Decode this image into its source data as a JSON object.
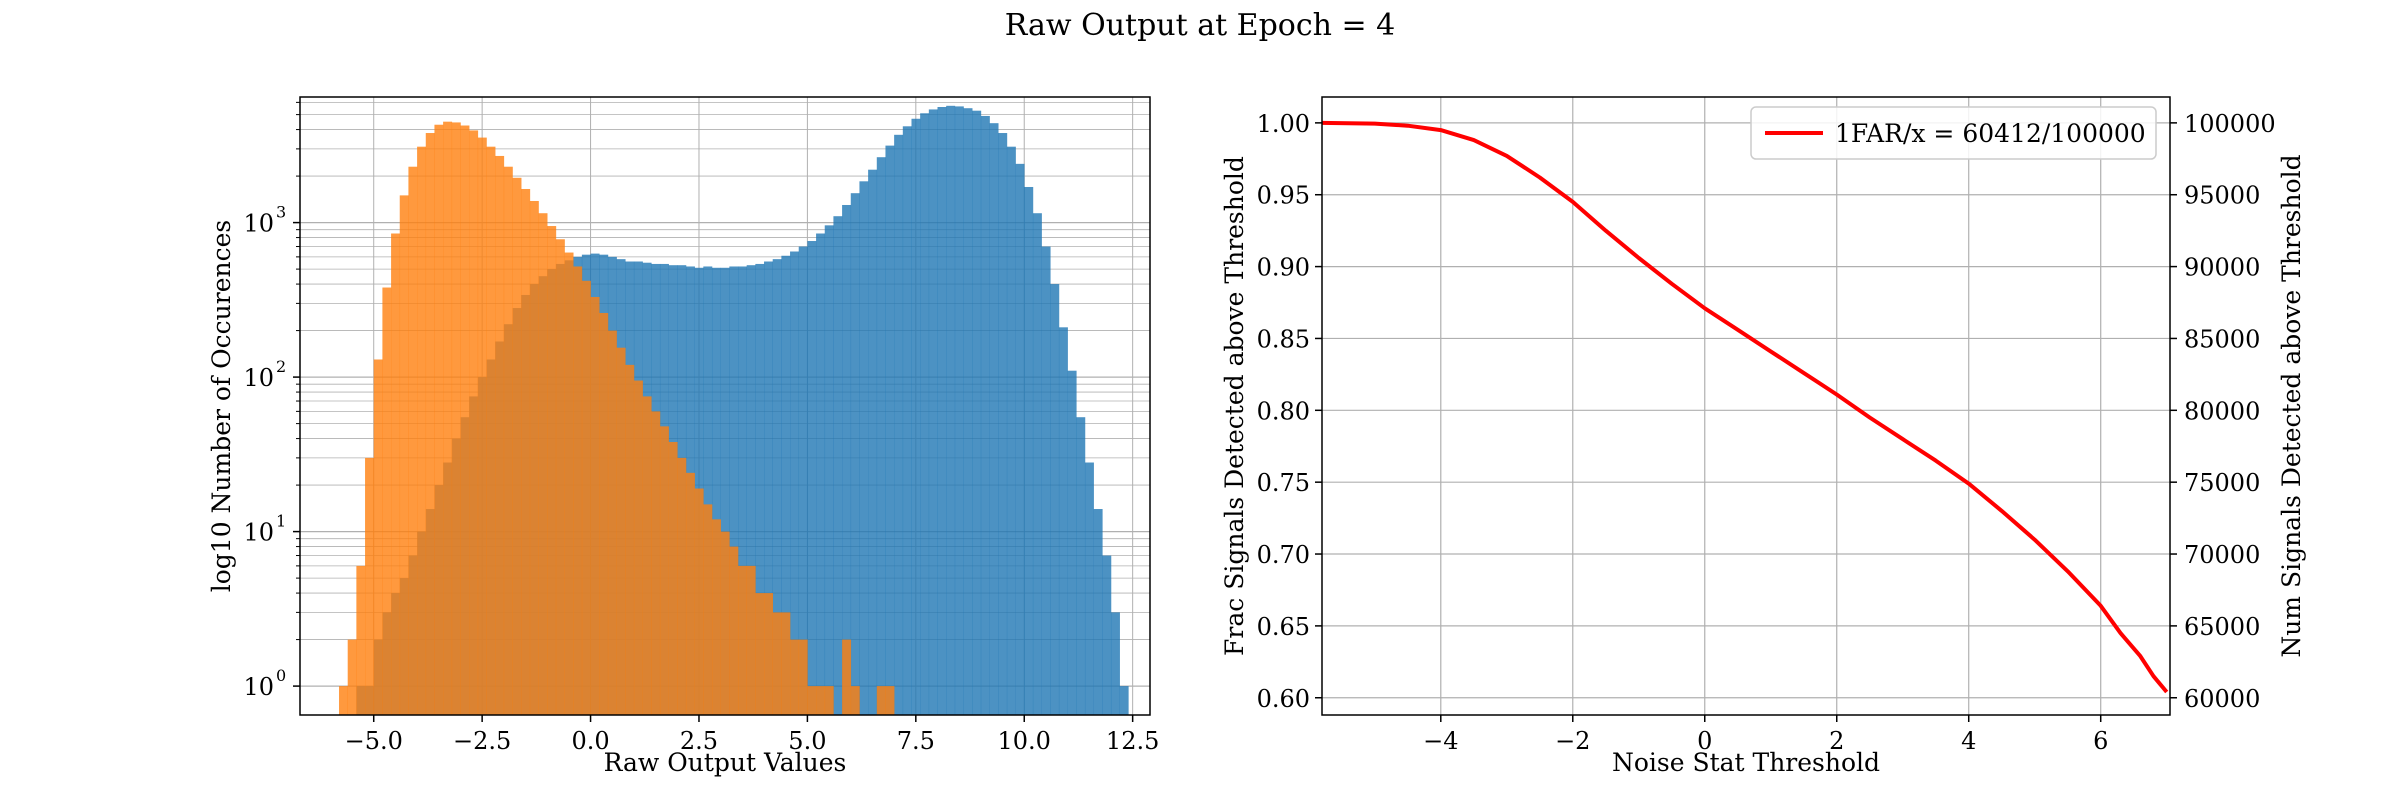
{
  "figure": {
    "title": "Raw Output at Epoch = 4",
    "colors": {
      "blue": "#1f77b4",
      "orange": "#ff7f0e",
      "red": "#ff0000",
      "grid": "#b0b0b0"
    }
  },
  "chart_data": [
    {
      "type": "histogram",
      "xlabel": "Raw Output Values",
      "ylabel": "log10 Number of Occurences",
      "yscale": "log",
      "xlim": [
        -6.7,
        12.9
      ],
      "ylim": [
        0.65,
        6500
      ],
      "xticks": [
        -5.0,
        -2.5,
        0.0,
        2.5,
        5.0,
        7.5,
        10.0,
        12.5
      ],
      "xtick_labels": [
        "−5.0",
        "−2.5",
        "0.0",
        "2.5",
        "5.0",
        "7.5",
        "10.0",
        "12.5"
      ],
      "yticks": [
        1,
        10,
        100,
        1000
      ],
      "ytick_labels": [
        "10",
        "10",
        "10",
        "10"
      ],
      "ytick_exponents": [
        "0",
        "1",
        "2",
        "3"
      ],
      "grid": true,
      "series": [
        {
          "color": "#1f77b4",
          "bin_width": 0.2,
          "bins": [
            [
              -5.4,
              1
            ],
            [
              -5.2,
              1
            ],
            [
              -5.0,
              2
            ],
            [
              -4.8,
              3
            ],
            [
              -4.6,
              4
            ],
            [
              -4.4,
              5
            ],
            [
              -4.2,
              7
            ],
            [
              -4.0,
              10
            ],
            [
              -3.8,
              14
            ],
            [
              -3.6,
              20
            ],
            [
              -3.4,
              28
            ],
            [
              -3.2,
              40
            ],
            [
              -3.0,
              55
            ],
            [
              -2.8,
              75
            ],
            [
              -2.6,
              100
            ],
            [
              -2.4,
              130
            ],
            [
              -2.2,
              170
            ],
            [
              -2.0,
              220
            ],
            [
              -1.8,
              280
            ],
            [
              -1.6,
              340
            ],
            [
              -1.4,
              400
            ],
            [
              -1.2,
              450
            ],
            [
              -1.0,
              500
            ],
            [
              -0.8,
              540
            ],
            [
              -0.6,
              570
            ],
            [
              -0.4,
              600
            ],
            [
              -0.2,
              620
            ],
            [
              0.0,
              630
            ],
            [
              0.2,
              620
            ],
            [
              0.4,
              600
            ],
            [
              0.6,
              580
            ],
            [
              0.8,
              560
            ],
            [
              1.0,
              560
            ],
            [
              1.2,
              550
            ],
            [
              1.4,
              540
            ],
            [
              1.6,
              540
            ],
            [
              1.8,
              530
            ],
            [
              2.0,
              530
            ],
            [
              2.2,
              520
            ],
            [
              2.4,
              510
            ],
            [
              2.6,
              520
            ],
            [
              2.8,
              510
            ],
            [
              3.0,
              510
            ],
            [
              3.2,
              520
            ],
            [
              3.4,
              520
            ],
            [
              3.6,
              530
            ],
            [
              3.8,
              540
            ],
            [
              4.0,
              560
            ],
            [
              4.2,
              580
            ],
            [
              4.4,
              610
            ],
            [
              4.6,
              650
            ],
            [
              4.8,
              700
            ],
            [
              5.0,
              760
            ],
            [
              5.2,
              850
            ],
            [
              5.4,
              960
            ],
            [
              5.6,
              1100
            ],
            [
              5.8,
              1300
            ],
            [
              6.0,
              1550
            ],
            [
              6.2,
              1850
            ],
            [
              6.4,
              2200
            ],
            [
              6.6,
              2650
            ],
            [
              6.8,
              3150
            ],
            [
              7.0,
              3700
            ],
            [
              7.2,
              4200
            ],
            [
              7.4,
              4700
            ],
            [
              7.6,
              5100
            ],
            [
              7.8,
              5400
            ],
            [
              8.0,
              5600
            ],
            [
              8.2,
              5700
            ],
            [
              8.4,
              5650
            ],
            [
              8.6,
              5500
            ],
            [
              8.8,
              5300
            ],
            [
              9.0,
              4900
            ],
            [
              9.2,
              4400
            ],
            [
              9.4,
              3800
            ],
            [
              9.6,
              3100
            ],
            [
              9.8,
              2400
            ],
            [
              10.0,
              1700
            ],
            [
              10.2,
              1150
            ],
            [
              10.4,
              700
            ],
            [
              10.6,
              400
            ],
            [
              10.8,
              210
            ],
            [
              11.0,
              110
            ],
            [
              11.2,
              55
            ],
            [
              11.4,
              28
            ],
            [
              11.6,
              14
            ],
            [
              11.8,
              7
            ],
            [
              12.0,
              3
            ],
            [
              12.2,
              1
            ]
          ]
        },
        {
          "color": "#ff7f0e",
          "bin_width": 0.2,
          "bins": [
            [
              -5.8,
              1
            ],
            [
              -5.6,
              2
            ],
            [
              -5.4,
              6
            ],
            [
              -5.2,
              30
            ],
            [
              -5.0,
              130
            ],
            [
              -4.8,
              380
            ],
            [
              -4.6,
              850
            ],
            [
              -4.4,
              1500
            ],
            [
              -4.2,
              2300
            ],
            [
              -4.0,
              3100
            ],
            [
              -3.8,
              3800
            ],
            [
              -3.6,
              4300
            ],
            [
              -3.4,
              4500
            ],
            [
              -3.2,
              4450
            ],
            [
              -3.0,
              4250
            ],
            [
              -2.8,
              3950
            ],
            [
              -2.6,
              3550
            ],
            [
              -2.4,
              3100
            ],
            [
              -2.2,
              2700
            ],
            [
              -2.0,
              2300
            ],
            [
              -1.8,
              1950
            ],
            [
              -1.6,
              1650
            ],
            [
              -1.4,
              1380
            ],
            [
              -1.2,
              1150
            ],
            [
              -1.0,
              950
            ],
            [
              -0.8,
              780
            ],
            [
              -0.6,
              640
            ],
            [
              -0.4,
              520
            ],
            [
              -0.2,
              420
            ],
            [
              0.0,
              330
            ],
            [
              0.2,
              260
            ],
            [
              0.4,
              200
            ],
            [
              0.6,
              155
            ],
            [
              0.8,
              120
            ],
            [
              1.0,
              95
            ],
            [
              1.2,
              75
            ],
            [
              1.4,
              60
            ],
            [
              1.6,
              48
            ],
            [
              1.8,
              38
            ],
            [
              2.0,
              30
            ],
            [
              2.2,
              24
            ],
            [
              2.4,
              19
            ],
            [
              2.6,
              15
            ],
            [
              2.8,
              12
            ],
            [
              3.0,
              10
            ],
            [
              3.2,
              8
            ],
            [
              3.4,
              6
            ],
            [
              3.6,
              6
            ],
            [
              3.8,
              4
            ],
            [
              4.0,
              4
            ],
            [
              4.2,
              3
            ],
            [
              4.4,
              3
            ],
            [
              4.6,
              2
            ],
            [
              4.8,
              2
            ],
            [
              5.0,
              1
            ],
            [
              5.2,
              1
            ],
            [
              5.4,
              1
            ],
            [
              5.8,
              2
            ],
            [
              6.0,
              1
            ],
            [
              6.6,
              1
            ],
            [
              6.8,
              1
            ]
          ]
        }
      ]
    },
    {
      "type": "line",
      "xlabel": "Noise Stat Threshold",
      "ylabel": "Frac Signals Detected above Threshold",
      "ylabel_right": "Num Signals Detected above Threshold",
      "xlim": [
        -5.8,
        7.05
      ],
      "ylim": [
        0.588,
        1.018
      ],
      "xticks": [
        -4,
        -2,
        0,
        2,
        4,
        6
      ],
      "xtick_labels": [
        "−4",
        "−2",
        "0",
        "2",
        "4",
        "6"
      ],
      "yticks": [
        0.6,
        0.65,
        0.7,
        0.75,
        0.8,
        0.85,
        0.9,
        0.95,
        1.0
      ],
      "ytick_labels": [
        "0.60",
        "0.65",
        "0.70",
        "0.75",
        "0.80",
        "0.85",
        "0.90",
        "0.95",
        "1.00"
      ],
      "yticks_right": [
        60000,
        65000,
        70000,
        75000,
        80000,
        85000,
        90000,
        95000,
        100000
      ],
      "ytick_labels_right": [
        "60000",
        "65000",
        "70000",
        "75000",
        "80000",
        "85000",
        "90000",
        "95000",
        "100000"
      ],
      "grid": true,
      "legend_position": "top-right",
      "series": [
        {
          "name": "1FAR/x = 60412/100000",
          "color": "#ff0000",
          "x": [
            -5.8,
            -5.0,
            -4.5,
            -4.0,
            -3.5,
            -3.0,
            -2.5,
            -2.0,
            -1.5,
            -1.0,
            -0.5,
            0.0,
            0.5,
            1.0,
            1.5,
            2.0,
            2.5,
            3.0,
            3.5,
            4.0,
            4.5,
            5.0,
            5.5,
            6.0,
            6.3,
            6.6,
            6.8,
            7.0
          ],
          "y": [
            1.0,
            0.9995,
            0.998,
            0.995,
            0.988,
            0.977,
            0.962,
            0.945,
            0.925,
            0.906,
            0.888,
            0.871,
            0.856,
            0.841,
            0.826,
            0.811,
            0.795,
            0.78,
            0.765,
            0.749,
            0.73,
            0.71,
            0.688,
            0.664,
            0.645,
            0.629,
            0.615,
            0.604
          ]
        }
      ]
    }
  ]
}
